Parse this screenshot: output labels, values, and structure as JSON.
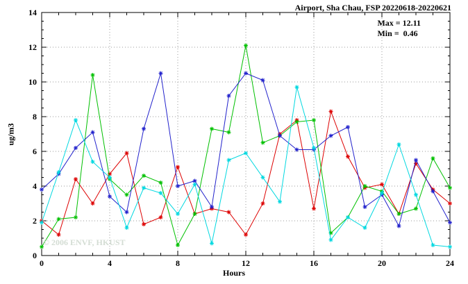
{
  "title": "Airport, Sha Chau, FSP 20220618-20220621",
  "stats": {
    "max_label": "Max = 12.11",
    "min_label": "Min =  0.46"
  },
  "watermark": "© 2006 ENVF, HKUST",
  "chart_data": {
    "type": "line",
    "title": "Airport, Sha Chau, FSP 20220618-20220621",
    "xlabel": "Hours",
    "ylabel": "ug/m3",
    "xlim": [
      0,
      24
    ],
    "ylim": [
      0,
      14
    ],
    "xticks": [
      0,
      4,
      8,
      12,
      16,
      20,
      24
    ],
    "yticks": [
      0,
      2,
      4,
      6,
      8,
      10,
      12,
      14
    ],
    "grid": true,
    "legend": "none",
    "max_value": 12.11,
    "min_value": 0.46,
    "x": [
      0,
      1,
      2,
      3,
      4,
      5,
      6,
      7,
      8,
      9,
      10,
      11,
      12,
      13,
      14,
      15,
      16,
      17,
      18,
      19,
      20,
      21,
      22,
      23,
      24
    ],
    "series": [
      {
        "name": "series-red",
        "color": "#dd0000",
        "values": [
          2.0,
          1.2,
          4.4,
          3.0,
          4.7,
          5.9,
          1.8,
          2.2,
          5.1,
          2.4,
          2.7,
          2.5,
          1.2,
          3.0,
          7.0,
          7.8,
          2.7,
          8.3,
          5.7,
          3.9,
          4.1,
          2.4,
          5.3,
          3.8,
          3.0
        ]
      },
      {
        "name": "series-green",
        "color": "#00c000",
        "values": [
          0.5,
          2.1,
          2.2,
          10.4,
          4.4,
          3.5,
          4.6,
          4.2,
          0.6,
          2.4,
          7.3,
          7.1,
          12.1,
          6.5,
          6.9,
          7.7,
          7.8,
          1.3,
          2.2,
          4.0,
          3.7,
          2.4,
          2.7,
          5.6,
          3.9
        ]
      },
      {
        "name": "series-blue",
        "color": "#2222cc",
        "values": [
          3.8,
          4.7,
          6.2,
          7.1,
          3.4,
          2.5,
          7.3,
          10.5,
          4.0,
          4.3,
          2.8,
          9.2,
          10.5,
          10.1,
          6.9,
          6.1,
          6.1,
          6.9,
          7.4,
          2.8,
          3.5,
          1.7,
          5.5,
          3.7,
          1.9
        ]
      },
      {
        "name": "series-cyan",
        "color": "#00d8e0",
        "values": [
          1.9,
          4.8,
          7.8,
          5.4,
          4.5,
          1.6,
          3.9,
          3.6,
          2.4,
          4.1,
          0.7,
          5.5,
          5.9,
          4.5,
          3.1,
          9.7,
          6.2,
          0.9,
          2.2,
          1.6,
          3.6,
          6.4,
          3.5,
          0.6,
          0.5
        ]
      }
    ]
  }
}
